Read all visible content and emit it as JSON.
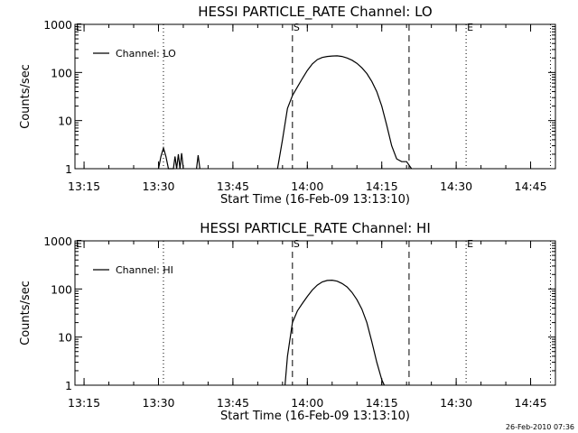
{
  "timestamp": "26-Feb-2010 07:36",
  "chart_data": [
    {
      "type": "line",
      "title": "HESSI PARTICLE_RATE Channel: LO",
      "xlabel": "Start Time (16-Feb-09 13:13:10)",
      "ylabel": "Counts/sec",
      "yscale": "log",
      "ylim": [
        1,
        1000
      ],
      "y_ticks": [
        "1",
        "10",
        "100",
        "1000"
      ],
      "x_ticks": [
        "13:15",
        "13:30",
        "13:45",
        "14:00",
        "14:15",
        "14:30",
        "14:45"
      ],
      "xlim": [
        "13:13:10",
        "14:50:00"
      ],
      "legend": "top-left",
      "series": [
        {
          "name": "Channel: LO",
          "points": [
            [
              "13:30:00",
              1
            ],
            [
              "13:30:30",
              1.8
            ],
            [
              "13:31:00",
              2.7
            ],
            [
              "13:31:30",
              1.8
            ],
            [
              "13:32:00",
              1
            ],
            [
              "13:33:00",
              1
            ],
            [
              "13:33:20",
              1.8
            ],
            [
              "13:33:40",
              1
            ],
            [
              "13:34:00",
              2.0
            ],
            [
              "13:34:20",
              1
            ],
            [
              "13:34:40",
              2.1
            ],
            [
              "13:35:00",
              1
            ],
            [
              "13:37:40",
              1
            ],
            [
              "13:38:00",
              1.9
            ],
            [
              "13:38:20",
              1
            ],
            [
              "13:54:00",
              1
            ],
            [
              "13:55:00",
              4
            ],
            [
              "13:56:00",
              18
            ],
            [
              "13:57:00",
              33
            ],
            [
              "13:58:00",
              50
            ],
            [
              "13:59:00",
              75
            ],
            [
              "14:00:00",
              110
            ],
            [
              "14:01:00",
              150
            ],
            [
              "14:02:00",
              185
            ],
            [
              "14:03:00",
              205
            ],
            [
              "14:04:00",
              215
            ],
            [
              "14:05:00",
              220
            ],
            [
              "14:06:00",
              222
            ],
            [
              "14:07:00",
              215
            ],
            [
              "14:08:00",
              200
            ],
            [
              "14:09:00",
              180
            ],
            [
              "14:10:00",
              155
            ],
            [
              "14:11:00",
              125
            ],
            [
              "14:12:00",
              95
            ],
            [
              "14:13:00",
              65
            ],
            [
              "14:14:00",
              40
            ],
            [
              "14:15:00",
              20
            ],
            [
              "14:16:00",
              8
            ],
            [
              "14:17:00",
              3
            ],
            [
              "14:18:00",
              1.6
            ],
            [
              "14:19:00",
              1.4
            ],
            [
              "14:20:00",
              1.4
            ],
            [
              "14:21:00",
              1
            ]
          ]
        }
      ],
      "markers": [
        {
          "label": "E",
          "time": "13:13:10",
          "style": "dotted"
        },
        {
          "label": "",
          "time": "13:31:00",
          "style": "dotted"
        },
        {
          "label": "S",
          "time": "13:57:00",
          "style": "dashed"
        },
        {
          "label": "",
          "time": "14:20:30",
          "style": "dashed"
        },
        {
          "label": "E",
          "time": "14:32:00",
          "style": "dotted"
        },
        {
          "label": "",
          "time": "14:49:00",
          "style": "dotted"
        }
      ]
    },
    {
      "type": "line",
      "title": "HESSI PARTICLE_RATE Channel: HI",
      "xlabel": "Start Time (16-Feb-09 13:13:10)",
      "ylabel": "Counts/sec",
      "yscale": "log",
      "ylim": [
        1,
        1000
      ],
      "y_ticks": [
        "1",
        "10",
        "100",
        "1000"
      ],
      "x_ticks": [
        "13:15",
        "13:30",
        "13:45",
        "14:00",
        "14:15",
        "14:30",
        "14:45"
      ],
      "xlim": [
        "13:13:10",
        "14:50:00"
      ],
      "legend": "top-left",
      "series": [
        {
          "name": "Channel: HI",
          "points": [
            [
              "13:55:30",
              1
            ],
            [
              "13:56:00",
              4
            ],
            [
              "13:57:00",
              20
            ],
            [
              "13:58:00",
              35
            ],
            [
              "13:59:00",
              50
            ],
            [
              "14:00:00",
              70
            ],
            [
              "14:01:00",
              95
            ],
            [
              "14:02:00",
              120
            ],
            [
              "14:03:00",
              140
            ],
            [
              "14:04:00",
              150
            ],
            [
              "14:05:00",
              152
            ],
            [
              "14:06:00",
              145
            ],
            [
              "14:07:00",
              130
            ],
            [
              "14:08:00",
              110
            ],
            [
              "14:09:00",
              85
            ],
            [
              "14:10:00",
              60
            ],
            [
              "14:11:00",
              38
            ],
            [
              "14:12:00",
              20
            ],
            [
              "14:13:00",
              8
            ],
            [
              "14:14:00",
              3
            ],
            [
              "14:15:00",
              1.3
            ],
            [
              "14:15:30",
              1
            ]
          ]
        }
      ],
      "markers": [
        {
          "label": "E",
          "time": "13:13:10",
          "style": "dotted"
        },
        {
          "label": "",
          "time": "13:31:00",
          "style": "dotted"
        },
        {
          "label": "S",
          "time": "13:57:00",
          "style": "dashed"
        },
        {
          "label": "",
          "time": "14:20:30",
          "style": "dashed"
        },
        {
          "label": "E",
          "time": "14:32:00",
          "style": "dotted"
        },
        {
          "label": "",
          "time": "14:49:00",
          "style": "dotted"
        }
      ]
    }
  ]
}
